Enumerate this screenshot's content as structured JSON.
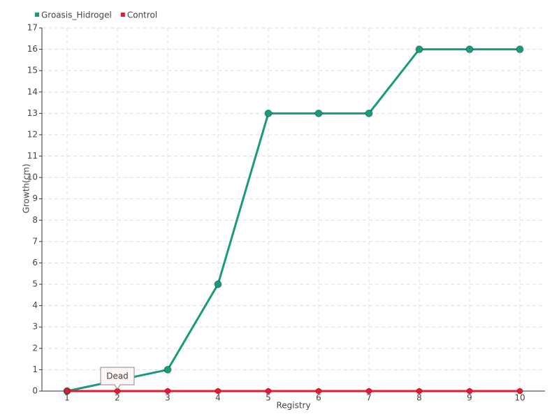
{
  "chart_data": {
    "type": "line",
    "x": [
      1,
      2,
      3,
      4,
      5,
      6,
      7,
      8,
      9,
      10
    ],
    "series": [
      {
        "name": "Groasis_Hidrogel",
        "color": "#1a9a7c",
        "values": [
          0,
          0.5,
          1,
          5,
          13,
          13,
          13,
          16,
          16,
          16
        ]
      },
      {
        "name": "Control",
        "color": "#e8192c",
        "values": [
          0,
          0,
          0,
          0,
          0,
          0,
          0,
          0,
          0,
          0
        ]
      }
    ],
    "xlabel": "Registry",
    "ylabel": "Growth(cm)",
    "xlim": [
      0.5,
      10.5
    ],
    "xticks": [
      1,
      2,
      3,
      4,
      5,
      6,
      7,
      8,
      9,
      10
    ],
    "ylim": [
      0,
      17
    ],
    "yticks": [
      0,
      1,
      2,
      3,
      4,
      5,
      6,
      7,
      8,
      9,
      10,
      11,
      12,
      13,
      14,
      15,
      16,
      17
    ],
    "grid": true,
    "legend": "top-left",
    "annotation": {
      "text": "Dead",
      "x": 2,
      "y": 0
    }
  }
}
